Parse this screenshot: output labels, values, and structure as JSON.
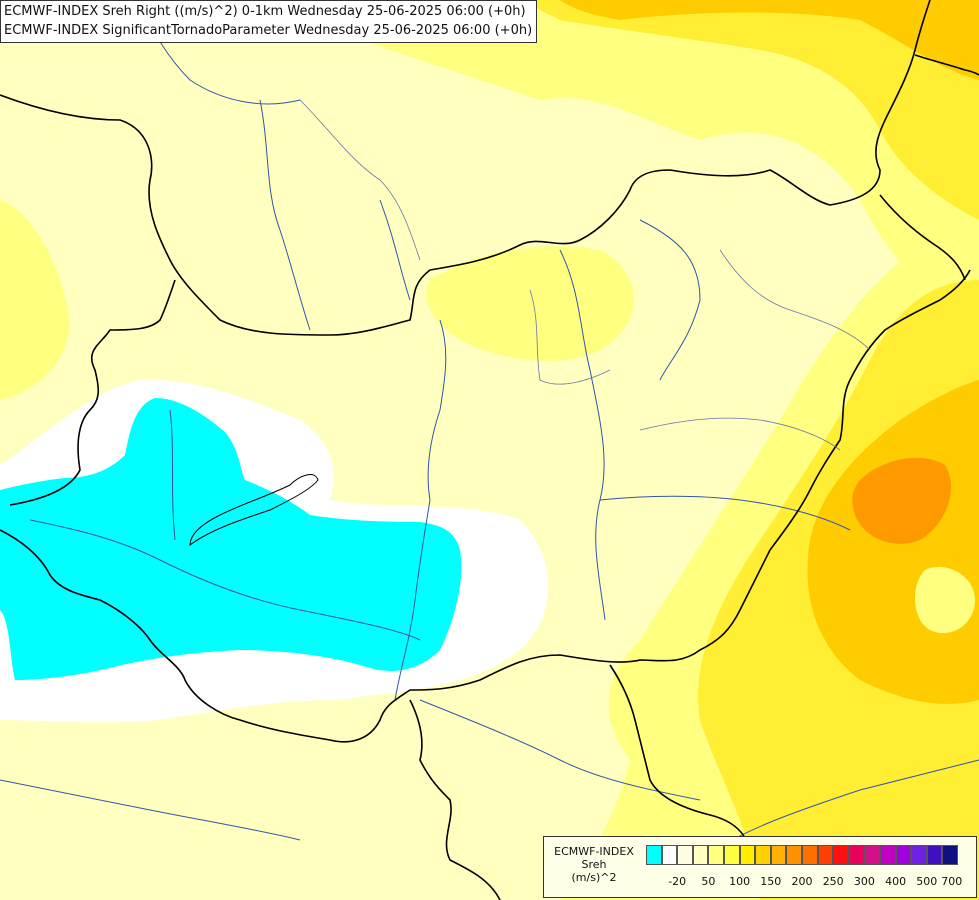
{
  "title": {
    "line1": "ECMWF-INDEX Sreh Right ((m/s)^2) 0-1km Wednesday 25-06-2025 06:00 (+0h)",
    "line2": "ECMWF-INDEX SignificantTornadoParameter Wednesday 25-06-2025 06:00 (+0h)"
  },
  "legend": {
    "line1": "ECMWF-INDEX",
    "line2": "Sreh",
    "line3": "(m/s)^2",
    "colors": [
      "#00ffff",
      "#ffffff",
      "#ffffe0",
      "#ffffc0",
      "#ffff80",
      "#ffff40",
      "#ffee00",
      "#ffd000",
      "#ffb000",
      "#ff9000",
      "#ff7000",
      "#ff4000",
      "#ff1010",
      "#e8005a",
      "#d0108a",
      "#c000c0",
      "#a000e0",
      "#7020e0",
      "#4010c0",
      "#101080"
    ],
    "ticks": [
      "-20",
      "50",
      "100",
      "150",
      "200",
      "250",
      "300",
      "400",
      "500",
      "700"
    ]
  },
  "colors": {
    "cyan_zone": "#00ffff",
    "base_yellow": "#ffffc0",
    "light_yellow": "#ffff80",
    "mid_yellow": "#ffee33",
    "gold": "#ffcc00",
    "orange": "#ff9900",
    "border_line": "#000000",
    "river_line": "#3355aa"
  }
}
